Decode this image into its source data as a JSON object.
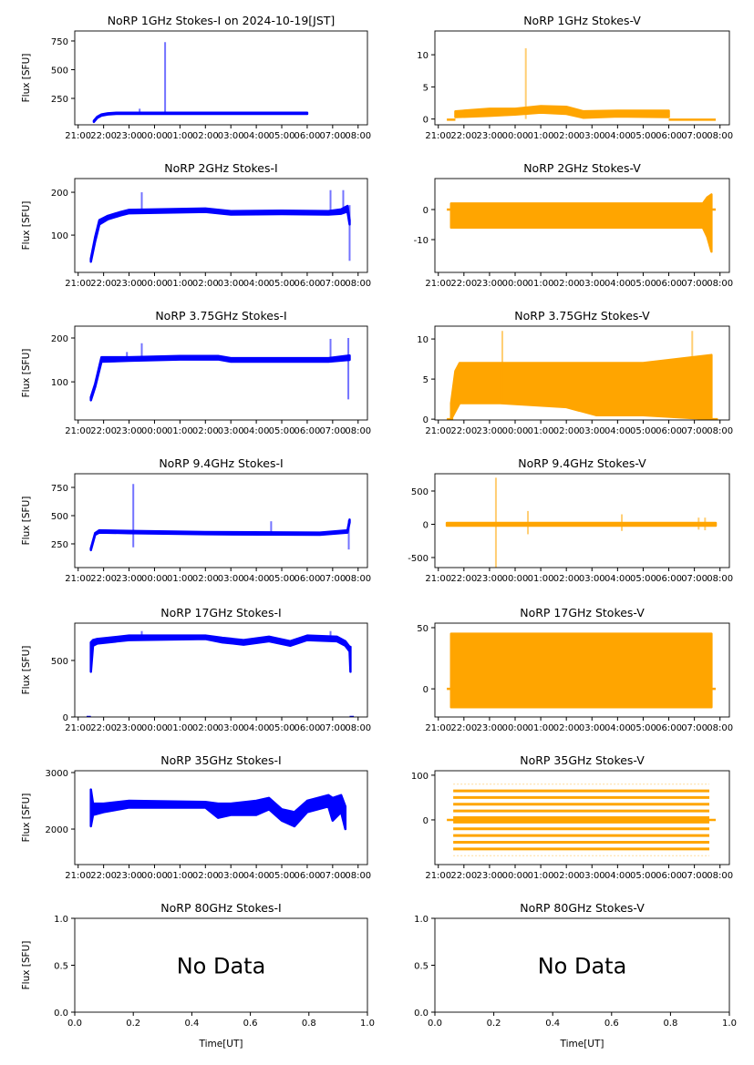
{
  "chart_data": [
    {
      "type": "area",
      "title": "NoRP 1GHz Stokes-I on 2024-10-19[JST]",
      "ylabel": "Flux [SFU]",
      "color": "#0000ff",
      "ylim": [
        20,
        837
      ],
      "yticks": [
        250,
        500,
        750
      ],
      "band": [
        [
          "21:37",
          45,
          55
        ],
        [
          "21:45",
          80,
          90
        ],
        [
          "21:55",
          100,
          110
        ],
        [
          "22:10",
          110,
          120
        ],
        [
          "22:30",
          115,
          125
        ],
        [
          "06:00",
          115,
          125
        ]
      ],
      "spikes": [
        [
          "23:25",
          110,
          160
        ],
        [
          "00:25",
          110,
          740
        ],
        [
          "01:40",
          110,
          130
        ],
        [
          "05:05",
          115,
          135
        ]
      ],
      "flat": []
    },
    {
      "type": "area",
      "title": "NoRP 1GHz Stokes-V",
      "ylabel": "",
      "color": "#ffa500",
      "ylim": [
        -0.9,
        13.7
      ],
      "yticks": [
        0,
        5,
        10
      ],
      "band": [
        [
          "21:40",
          0.3,
          1.2
        ],
        [
          "23:00",
          0.5,
          1.6
        ],
        [
          "00:00",
          0.7,
          1.6
        ],
        [
          "01:00",
          1.0,
          2.0
        ],
        [
          "02:00",
          0.8,
          1.9
        ],
        [
          "02:40",
          0.2,
          1.2
        ],
        [
          "04:00",
          0.4,
          1.3
        ],
        [
          "06:00",
          0.3,
          1.3
        ]
      ],
      "spikes": [
        [
          "00:25",
          0,
          11
        ]
      ],
      "flat": [
        [
          "21:20",
          "21:40",
          -0.1
        ],
        [
          "06:00",
          "07:50",
          -0.1
        ]
      ]
    },
    {
      "type": "area",
      "title": "NoRP 2GHz Stokes-I",
      "ylabel": "Flux [SFU]",
      "color": "#0000ff",
      "ylim": [
        13,
        232
      ],
      "yticks": [
        100,
        200
      ],
      "band": [
        [
          "21:30",
          38,
          45
        ],
        [
          "21:40",
          85,
          95
        ],
        [
          "21:50",
          125,
          135
        ],
        [
          "22:10",
          137,
          145
        ],
        [
          "22:40",
          146,
          154
        ],
        [
          "23:00",
          151,
          159
        ],
        [
          "02:00",
          154,
          162
        ],
        [
          "03:00",
          148,
          156
        ],
        [
          "05:00",
          149,
          157
        ],
        [
          "06:50",
          148,
          156
        ],
        [
          "07:20",
          150,
          160
        ],
        [
          "07:35",
          155,
          168
        ],
        [
          "07:40",
          125,
          135
        ]
      ],
      "spikes": [
        [
          "23:30",
          150,
          200
        ],
        [
          "06:55",
          150,
          205
        ],
        [
          "07:25",
          155,
          205
        ],
        [
          "07:40",
          40,
          170
        ]
      ],
      "flat": []
    },
    {
      "type": "area",
      "title": "NoRP 2GHz Stokes-V",
      "ylabel": "",
      "color": "#ffa500",
      "ylim": [
        -20.9,
        10.3
      ],
      "yticks": [
        -10,
        0
      ],
      "band": [
        [
          "21:30",
          -6,
          2
        ],
        [
          "07:20",
          -6,
          2
        ],
        [
          "07:30",
          -9,
          4
        ],
        [
          "07:40",
          -14,
          5
        ]
      ],
      "spikes": [],
      "flat": [
        [
          "21:20",
          "21:30",
          0
        ],
        [
          "07:40",
          "07:50",
          0
        ]
      ]
    },
    {
      "type": "area",
      "title": "NoRP 3.75GHz Stokes-I",
      "ylabel": "Flux [SFU]",
      "color": "#0000ff",
      "ylim": [
        13,
        227
      ],
      "yticks": [
        100,
        200
      ],
      "band": [
        [
          "21:30",
          58,
          65
        ],
        [
          "21:40",
          88,
          95
        ],
        [
          "21:55",
          146,
          156
        ],
        [
          "23:00",
          148,
          156
        ],
        [
          "01:00",
          151,
          159
        ],
        [
          "02:30",
          151,
          159
        ],
        [
          "03:00",
          146,
          154
        ],
        [
          "06:50",
          146,
          154
        ],
        [
          "07:40",
          150,
          160
        ]
      ],
      "spikes": [
        [
          "23:30",
          150,
          188
        ],
        [
          "22:55",
          150,
          168
        ],
        [
          "06:55",
          150,
          198
        ],
        [
          "07:37",
          60,
          200
        ]
      ],
      "flat": []
    },
    {
      "type": "area",
      "title": "NoRP 3.75GHz Stokes-V",
      "ylabel": "",
      "color": "#ffa500",
      "ylim": [
        -0.1,
        11.6
      ],
      "yticks": [
        0,
        5,
        10
      ],
      "band": [
        [
          "21:30",
          0,
          2
        ],
        [
          "21:40",
          1,
          6
        ],
        [
          "21:50",
          2,
          7
        ],
        [
          "23:25",
          2,
          7
        ],
        [
          "02:00",
          1.5,
          7
        ],
        [
          "03:10",
          0.5,
          7
        ],
        [
          "05:00",
          0.5,
          7
        ],
        [
          "07:40",
          0,
          8
        ]
      ],
      "spikes": [
        [
          "23:30",
          2,
          11
        ],
        [
          "06:55",
          2,
          11
        ]
      ],
      "flat": [
        [
          "21:20",
          "21:35",
          0
        ],
        [
          "07:40",
          "07:55",
          0
        ]
      ]
    },
    {
      "type": "area",
      "title": "NoRP 9.4GHz Stokes-I",
      "ylabel": "Flux [SFU]",
      "color": "#0000ff",
      "ylim": [
        40,
        871
      ],
      "yticks": [
        250,
        500,
        750
      ],
      "band": [
        [
          "21:30",
          195,
          210
        ],
        [
          "21:40",
          330,
          345
        ],
        [
          "21:50",
          350,
          370
        ],
        [
          "23:00",
          345,
          365
        ],
        [
          "02:00",
          335,
          355
        ],
        [
          "06:30",
          330,
          350
        ],
        [
          "07:35",
          350,
          370
        ],
        [
          "07:40",
          440,
          465
        ]
      ],
      "spikes": [
        [
          "23:10",
          220,
          780
        ],
        [
          "04:35",
          330,
          450
        ],
        [
          "07:38",
          200,
          460
        ]
      ],
      "flat": []
    },
    {
      "type": "area",
      "title": "NoRP 9.4GHz Stokes-V",
      "ylabel": "",
      "color": "#ffa500",
      "ylim": [
        -651,
        760
      ],
      "yticks": [
        -500,
        0,
        500
      ],
      "band": [
        [
          "21:20",
          -20,
          20
        ],
        [
          "07:50",
          -20,
          20
        ]
      ],
      "spikes": [
        [
          "23:15",
          -650,
          700
        ],
        [
          "00:30",
          -150,
          200
        ],
        [
          "04:10",
          -100,
          150
        ],
        [
          "07:10",
          -80,
          100
        ],
        [
          "07:25",
          -90,
          100
        ]
      ],
      "flat": []
    },
    {
      "type": "area",
      "title": "NoRP 17GHz Stokes-I",
      "ylabel": "Flux [SFU]",
      "color": "#0000ff",
      "ylim": [
        0,
        830
      ],
      "yticks": [
        0,
        500
      ],
      "band": [
        [
          "21:30",
          400,
          660
        ],
        [
          "21:35",
          630,
          680
        ],
        [
          "21:45",
          650,
          690
        ],
        [
          "23:00",
          680,
          720
        ],
        [
          "02:00",
          690,
          720
        ],
        [
          "02:40",
          660,
          700
        ],
        [
          "03:30",
          640,
          680
        ],
        [
          "04:30",
          670,
          710
        ],
        [
          "05:20",
          630,
          670
        ],
        [
          "06:00",
          680,
          720
        ],
        [
          "07:10",
          670,
          710
        ],
        [
          "07:30",
          630,
          670
        ],
        [
          "07:40",
          580,
          620
        ],
        [
          "07:42",
          400,
          620
        ]
      ],
      "spikes": [
        [
          "23:30",
          690,
          760
        ],
        [
          "06:55",
          690,
          760
        ]
      ],
      "flat": [
        [
          "21:20",
          "21:30",
          0
        ],
        [
          "07:40",
          "07:50",
          0
        ]
      ]
    },
    {
      "type": "area",
      "title": "NoRP 17GHz Stokes-V",
      "ylabel": "",
      "color": "#ffa500",
      "ylim": [
        -23,
        53.7
      ],
      "yticks": [
        0,
        50
      ],
      "band": [
        [
          "21:30",
          -15,
          45
        ],
        [
          "07:40",
          -15,
          45
        ]
      ],
      "spikes": [],
      "flat": [
        [
          "21:20",
          "21:30",
          0
        ],
        [
          "07:40",
          "07:50",
          0
        ]
      ]
    },
    {
      "type": "area",
      "title": "NoRP 35GHz Stokes-I",
      "ylabel": "Flux [SFU]",
      "color": "#0000ff",
      "ylim": [
        1372,
        3032
      ],
      "yticks": [
        2000,
        3000
      ],
      "band": [
        [
          "21:30",
          2050,
          2700
        ],
        [
          "21:35",
          2250,
          2450
        ],
        [
          "22:00",
          2300,
          2450
        ],
        [
          "23:00",
          2380,
          2500
        ],
        [
          "02:00",
          2380,
          2480
        ],
        [
          "02:30",
          2200,
          2450
        ],
        [
          "03:00",
          2250,
          2450
        ],
        [
          "04:00",
          2250,
          2500
        ],
        [
          "04:30",
          2350,
          2550
        ],
        [
          "05:00",
          2150,
          2350
        ],
        [
          "05:30",
          2050,
          2300
        ],
        [
          "06:00",
          2300,
          2500
        ],
        [
          "06:50",
          2400,
          2600
        ],
        [
          "07:00",
          2150,
          2550
        ],
        [
          "07:20",
          2300,
          2600
        ],
        [
          "07:30",
          2000,
          2400
        ]
      ],
      "spikes": [],
      "flat": []
    },
    {
      "type": "area",
      "title": "NoRP 35GHz Stokes-V",
      "ylabel": "",
      "color": "#ffa500",
      "ylim": [
        -100,
        110
      ],
      "yticks": [
        0,
        100
      ],
      "band": [],
      "spikes": [],
      "levels": [
        -80,
        -65,
        -50,
        -35,
        -20,
        -5,
        5,
        20,
        35,
        50,
        65,
        80
      ],
      "levels_range": [
        "21:35",
        "07:35"
      ],
      "flat": [
        [
          "21:20",
          "07:50",
          0
        ]
      ]
    },
    {
      "type": "empty",
      "title": "NoRP 80GHz Stokes-I",
      "ylabel": "Flux [SFU]",
      "xlabel": "Time[UT]",
      "message": "No Data",
      "xlim": [
        0,
        1
      ],
      "ylim": [
        0,
        1
      ],
      "xticks": [
        "0.0",
        "0.2",
        "0.4",
        "0.6",
        "0.8",
        "1.0"
      ],
      "yticks": [
        "0.0",
        "0.5",
        "1.0"
      ]
    },
    {
      "type": "empty",
      "title": "NoRP 80GHz Stokes-V",
      "ylabel": "",
      "xlabel": "Time[UT]",
      "message": "No Data",
      "xlim": [
        0,
        1
      ],
      "ylim": [
        0,
        1
      ],
      "xticks": [
        "0.0",
        "0.2",
        "0.4",
        "0.6",
        "0.8",
        "1.0"
      ],
      "yticks": [
        "0.0",
        "0.5",
        "1.0"
      ]
    }
  ],
  "time_axis": {
    "xlim": [
      "20:52",
      "08:22"
    ],
    "ticks": [
      "21:00",
      "22:00",
      "23:00",
      "00:00",
      "01:00",
      "02:00",
      "03:00",
      "04:00",
      "05:00",
      "06:00",
      "07:00",
      "08:00"
    ]
  }
}
